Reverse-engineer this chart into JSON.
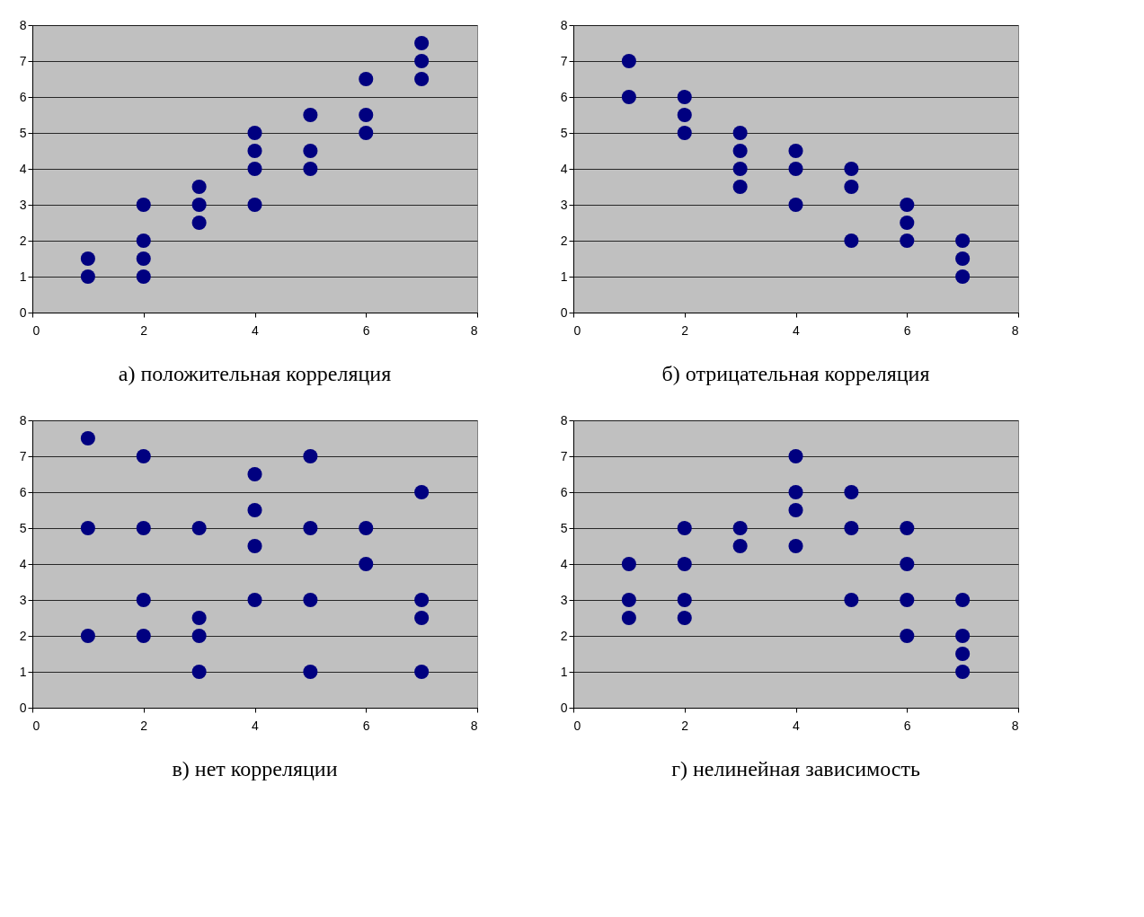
{
  "chart_data": [
    {
      "type": "scatter",
      "title": "а) положительная корреляция",
      "xlim": [
        0,
        8
      ],
      "ylim": [
        0,
        8
      ],
      "xticks": [
        0,
        2,
        4,
        6,
        8
      ],
      "yticks": [
        0,
        1,
        2,
        3,
        4,
        5,
        6,
        7,
        8
      ],
      "grid": "y",
      "marker": "circle",
      "series": [
        {
          "color": "#000080",
          "x": [
            1,
            1,
            2,
            2,
            2,
            2,
            3,
            3,
            3,
            4,
            4,
            4,
            4,
            5,
            5,
            5,
            6,
            6,
            6,
            7,
            7,
            7
          ],
          "values": [
            1,
            1.5,
            1,
            1.5,
            2,
            3,
            2.5,
            3,
            3.5,
            3,
            4,
            4.5,
            5,
            4,
            4.5,
            5.5,
            5,
            5.5,
            6.5,
            6.5,
            7,
            7.5
          ]
        }
      ]
    },
    {
      "type": "scatter",
      "title": "б) отрицательная корреляция",
      "xlim": [
        0,
        8
      ],
      "ylim": [
        0,
        8
      ],
      "xticks": [
        0,
        2,
        4,
        6,
        8
      ],
      "yticks": [
        0,
        1,
        2,
        3,
        4,
        5,
        6,
        7,
        8
      ],
      "grid": "y",
      "marker": "circle",
      "series": [
        {
          "color": "#000080",
          "x": [
            1,
            1,
            2,
            2,
            2,
            3,
            3,
            3,
            3,
            4,
            4,
            4,
            5,
            5,
            5,
            6,
            6,
            6,
            7,
            7,
            7
          ],
          "values": [
            6,
            7,
            5,
            5.5,
            6,
            3.5,
            4,
            4.5,
            5,
            3,
            4,
            4.5,
            2,
            3.5,
            4,
            2,
            2.5,
            3,
            1,
            1.5,
            2
          ]
        }
      ]
    },
    {
      "type": "scatter",
      "title": "в) нет корреляции",
      "xlim": [
        0,
        8
      ],
      "ylim": [
        0,
        8
      ],
      "xticks": [
        0,
        2,
        4,
        6,
        8
      ],
      "yticks": [
        0,
        1,
        2,
        3,
        4,
        5,
        6,
        7,
        8
      ],
      "grid": "y",
      "marker": "circle",
      "series": [
        {
          "color": "#000080",
          "x": [
            1,
            1,
            1,
            2,
            2,
            2,
            2,
            3,
            3,
            3,
            3,
            4,
            4,
            4,
            4,
            5,
            5,
            5,
            5,
            6,
            6,
            7,
            7,
            7,
            7
          ],
          "values": [
            7.5,
            5,
            2,
            7,
            5,
            3,
            2,
            5,
            2.5,
            2,
            1,
            6.5,
            5.5,
            4.5,
            3,
            7,
            5,
            3,
            1,
            5,
            4,
            6,
            3,
            2.5,
            1
          ]
        }
      ]
    },
    {
      "type": "scatter",
      "title": "г) нелинейная зависимость",
      "xlim": [
        0,
        8
      ],
      "ylim": [
        0,
        8
      ],
      "xticks": [
        0,
        2,
        4,
        6,
        8
      ],
      "yticks": [
        0,
        1,
        2,
        3,
        4,
        5,
        6,
        7,
        8
      ],
      "grid": "y",
      "marker": "circle",
      "series": [
        {
          "color": "#000080",
          "x": [
            1,
            1,
            1,
            2,
            2,
            2,
            2,
            3,
            3,
            4,
            4,
            4,
            4,
            5,
            5,
            5,
            6,
            6,
            6,
            6,
            7,
            7,
            7,
            7
          ],
          "values": [
            4,
            3,
            2.5,
            5,
            4,
            3,
            2.5,
            5,
            4.5,
            7,
            6,
            5.5,
            4.5,
            6,
            5,
            3,
            5,
            4,
            3,
            2,
            3,
            2,
            1.5,
            1
          ]
        }
      ]
    }
  ]
}
